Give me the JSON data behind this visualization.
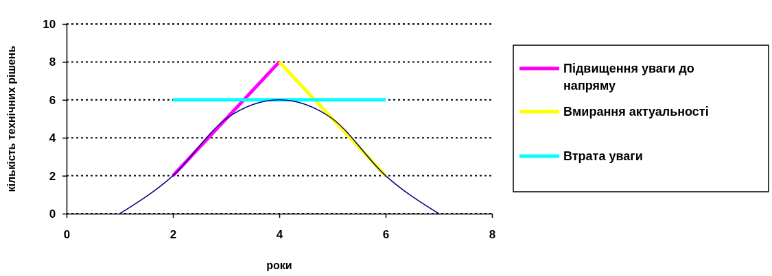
{
  "chart_data": {
    "type": "line",
    "xlabel": "роки",
    "ylabel": "кількість технічних рішень",
    "xlim": [
      0,
      8
    ],
    "xticks": [
      0,
      2,
      4,
      6,
      8
    ],
    "ylim": [
      0,
      10
    ],
    "yticks": [
      0,
      2,
      4,
      6,
      8,
      10
    ],
    "grid": "y",
    "legend": "right",
    "marker": "none",
    "line_style": "solid",
    "series": [
      {
        "name": "Підвищення уваги до напряму",
        "color": "#ff00ff",
        "x": [
          2,
          4
        ],
        "values": [
          2,
          8
        ]
      },
      {
        "name": "Вмирання актуальності",
        "color": "#ffff00",
        "x": [
          4,
          6
        ],
        "values": [
          8,
          2
        ]
      },
      {
        "name": "Втрата уваги",
        "color": "#00ffff",
        "x": [
          2,
          6
        ],
        "values": [
          6,
          6
        ]
      },
      {
        "color": "#000080",
        "x": [
          1,
          2,
          3,
          4,
          5,
          6,
          7
        ],
        "values": [
          0,
          2,
          5,
          6,
          5,
          2,
          0
        ]
      }
    ]
  }
}
